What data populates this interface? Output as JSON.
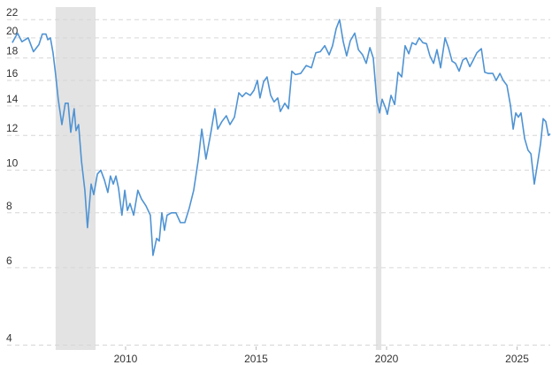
{
  "chart_data": {
    "type": "line",
    "log_scale": true,
    "grid": true,
    "color": "#4f93d3",
    "shade_color": "#e3e3e3",
    "shaded_ranges": [
      [
        2007.32,
        2008.85
      ],
      [
        2019.59,
        2019.8
      ]
    ],
    "xlim": [
      2005.46,
      2026.27
    ],
    "xticks": [
      2010,
      2015,
      2020,
      2025
    ],
    "ylim": [
      3.9,
      23.5
    ],
    "yticks": [
      4,
      6,
      8,
      10,
      12,
      14,
      16,
      18,
      20,
      22
    ],
    "x": [
      2005.66,
      2005.86,
      2006.03,
      2006.27,
      2006.47,
      2006.68,
      2006.81,
      2006.95,
      2007.02,
      2007.12,
      2007.22,
      2007.32,
      2007.42,
      2007.56,
      2007.69,
      2007.8,
      2007.9,
      2008.03,
      2008.1,
      2008.2,
      2008.31,
      2008.44,
      2008.54,
      2008.68,
      2008.78,
      2008.92,
      2009.05,
      2009.19,
      2009.32,
      2009.42,
      2009.53,
      2009.63,
      2009.73,
      2009.86,
      2009.97,
      2010.07,
      2010.17,
      2010.31,
      2010.47,
      2010.61,
      2010.78,
      2010.95,
      2011.05,
      2011.19,
      2011.29,
      2011.39,
      2011.49,
      2011.59,
      2011.76,
      2011.93,
      2012.1,
      2012.27,
      2012.44,
      2012.61,
      2012.78,
      2012.92,
      2013.08,
      2013.25,
      2013.42,
      2013.53,
      2013.69,
      2013.86,
      2014.0,
      2014.17,
      2014.34,
      2014.47,
      2014.61,
      2014.78,
      2014.92,
      2015.05,
      2015.15,
      2015.29,
      2015.42,
      2015.56,
      2015.69,
      2015.83,
      2015.93,
      2016.1,
      2016.24,
      2016.37,
      2016.51,
      2016.71,
      2016.92,
      2017.12,
      2017.29,
      2017.46,
      2017.63,
      2017.8,
      2017.93,
      2018.07,
      2018.2,
      2018.34,
      2018.47,
      2018.61,
      2018.78,
      2018.92,
      2019.08,
      2019.22,
      2019.36,
      2019.49,
      2019.63,
      2019.73,
      2019.83,
      2019.97,
      2020.03,
      2020.17,
      2020.31,
      2020.44,
      2020.58,
      2020.71,
      2020.85,
      2020.98,
      2021.12,
      2021.25,
      2021.39,
      2021.53,
      2021.66,
      2021.8,
      2021.93,
      2022.07,
      2022.24,
      2022.37,
      2022.51,
      2022.64,
      2022.78,
      2022.92,
      2023.05,
      2023.19,
      2023.32,
      2023.46,
      2023.63,
      2023.76,
      2023.9,
      2024.07,
      2024.2,
      2024.34,
      2024.47,
      2024.61,
      2024.75,
      2024.85,
      2024.95,
      2025.05,
      2025.15,
      2025.29,
      2025.42,
      2025.53,
      2025.66,
      2025.8,
      2025.9,
      2026.0,
      2026.1,
      2026.2,
      2026.27
    ],
    "values": [
      19.5,
      20.5,
      19.6,
      20,
      18.6,
      19.3,
      20.4,
      20.4,
      19.8,
      20,
      18.5,
      16.5,
      14.5,
      12.7,
      14.2,
      14.2,
      12.2,
      13.8,
      12.3,
      12.7,
      10.5,
      9,
      7.4,
      9.3,
      8.8,
      9.8,
      10,
      9.5,
      8.9,
      9.7,
      9.3,
      9.7,
      9.1,
      7.9,
      9,
      8.1,
      8.4,
      7.9,
      9,
      8.6,
      8.3,
      7.9,
      6.4,
      7,
      6.9,
      8,
      7.3,
      7.9,
      8,
      8,
      7.6,
      7.6,
      8.2,
      9,
      10.5,
      12.4,
      10.6,
      12,
      13.8,
      12.4,
      12.9,
      13.3,
      12.7,
      13.2,
      15,
      14.7,
      15,
      14.8,
      15.2,
      16,
      14.6,
      15.9,
      16.3,
      14.8,
      14.3,
      14.6,
      13.6,
      14.2,
      13.8,
      16.8,
      16.5,
      16.6,
      17.3,
      17.1,
      18.5,
      18.6,
      19.2,
      18.3,
      19.2,
      21,
      22,
      19.6,
      18.2,
      19.7,
      20.5,
      18.8,
      18.3,
      17.5,
      19,
      18,
      14.3,
      13.5,
      14.5,
      13.8,
      13.4,
      14.8,
      14.1,
      16.7,
      16.3,
      19.2,
      18.4,
      19.5,
      19.3,
      20,
      19.5,
      19.4,
      18.2,
      17.5,
      18.8,
      17.1,
      20,
      19,
      17.7,
      17.5,
      16.8,
      17.8,
      18,
      17.2,
      17.8,
      18.5,
      18.9,
      16.7,
      16.6,
      16.6,
      16,
      16.6,
      16,
      15.6,
      14,
      12.4,
      13.5,
      13.2,
      13.5,
      11.8,
      11.1,
      10.9,
      9.3,
      10.5,
      11.5,
      13.1,
      12.9,
      12,
      12.1
    ]
  }
}
